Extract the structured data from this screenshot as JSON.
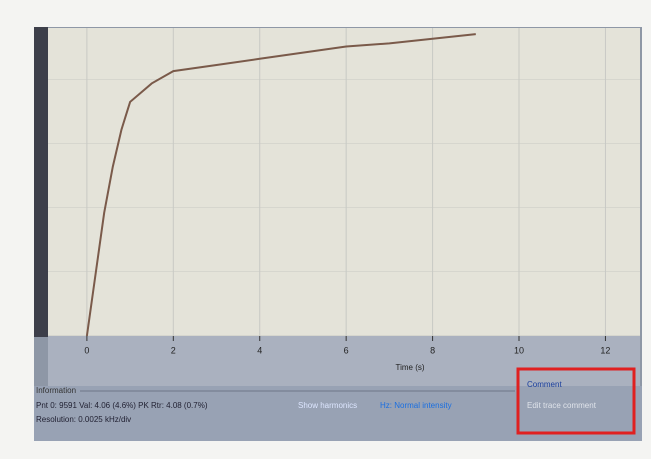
{
  "chart_data": {
    "type": "line",
    "x_label": "Time (s)",
    "x": [
      0,
      0.2,
      0.4,
      0.6,
      0.8,
      1,
      1.5,
      2,
      3,
      4,
      5,
      6,
      7,
      8,
      9
    ],
    "series": [
      {
        "color": "#7a5a4a",
        "values": [
          0,
          20,
          40,
          55,
          67,
          76,
          82,
          86,
          88,
          90,
          92,
          94,
          95,
          96.5,
          98
        ]
      }
    ],
    "xlim": [
      -0.9,
      12.8
    ],
    "xticks": [
      0,
      2,
      4,
      6,
      8,
      10,
      12
    ],
    "ylim": [
      0,
      100
    ],
    "grid": true
  },
  "panel": {
    "info_title": "Information",
    "info_line1": "Pnt 0: 9591 Val: 4.06 (4.6%) PK Rtr: 4.08 (0.7%)",
    "info_line2": "Resolution: 0.0025 kHz/div",
    "link1": "Show harmonics",
    "link2": "Hz: Normal intensity",
    "comment_title": "Comment",
    "comment_text": "Edit trace comment"
  }
}
